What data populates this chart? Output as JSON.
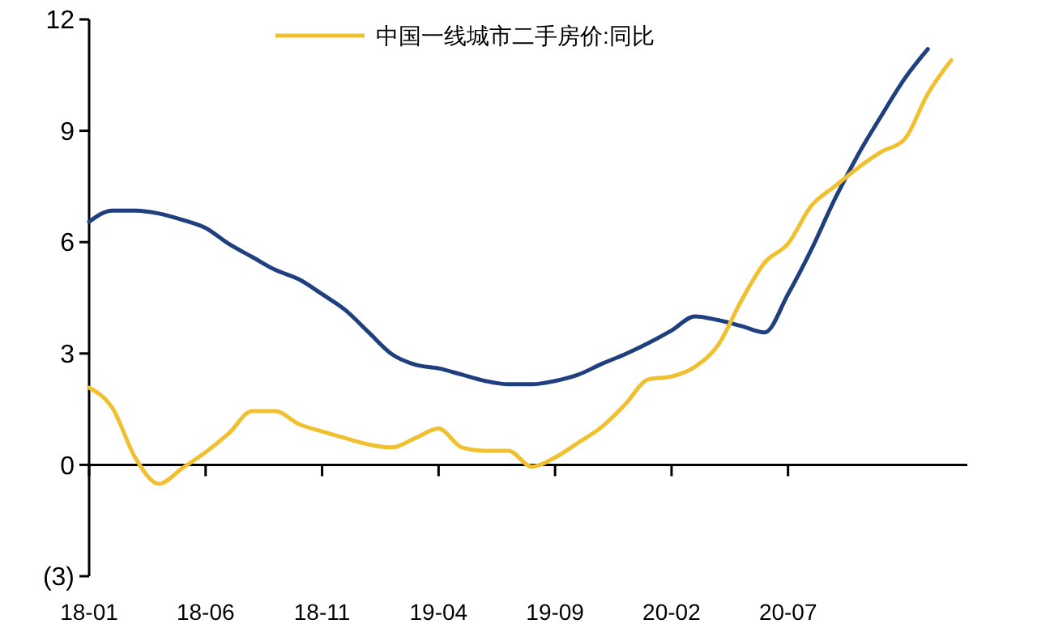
{
  "chart_data": {
    "type": "line",
    "legend": "top",
    "categories": [
      "18-01",
      null,
      null,
      null,
      null,
      "18-06",
      null,
      null,
      null,
      null,
      "18-11",
      null,
      null,
      null,
      null,
      "19-04",
      null,
      null,
      null,
      null,
      "19-09",
      null,
      null,
      null,
      null,
      "20-02",
      null,
      null,
      null,
      null,
      "20-07",
      null,
      null,
      null,
      null,
      null,
      null,
      null
    ],
    "ylim": [
      -3,
      12
    ],
    "yticks": [
      {
        "value": -3,
        "label": "(3)"
      },
      0,
      3,
      6,
      9,
      12
    ],
    "series": [
      {
        "color": "#1f3f7f",
        "values": [
          6.55,
          6.85,
          6.85,
          6.77,
          6.6,
          6.38,
          5.95,
          5.6,
          5.25,
          5.0,
          4.6,
          4.17,
          3.57,
          2.98,
          2.7,
          2.6,
          2.43,
          2.26,
          2.17,
          2.17,
          2.26,
          2.43,
          2.72,
          2.98,
          3.28,
          3.62,
          4.0,
          3.9,
          3.74,
          3.57,
          4.6,
          5.8,
          7.15,
          8.35,
          9.4,
          10.4,
          11.2,
          null
        ]
      },
      {
        "name": "中国一线城市二手房价:同比",
        "color": "#f0c030",
        "values": [
          2.08,
          1.53,
          0.17,
          -0.51,
          -0.09,
          0.34,
          0.85,
          1.45,
          1.45,
          1.1,
          0.9,
          0.72,
          0.55,
          0.47,
          0.72,
          0.98,
          0.47,
          0.38,
          0.38,
          -0.05,
          0.2,
          0.6,
          1.02,
          1.62,
          2.3,
          2.38,
          2.64,
          3.23,
          4.43,
          5.45,
          5.96,
          6.98,
          7.5,
          8.0,
          8.43,
          8.77,
          10.0,
          10.9
        ]
      }
    ]
  }
}
